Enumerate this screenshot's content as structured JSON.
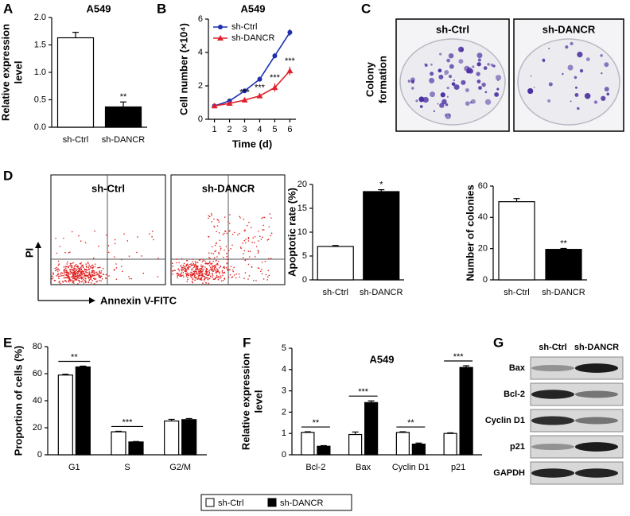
{
  "panel_labels": [
    "A",
    "B",
    "C",
    "D",
    "E",
    "F",
    "G"
  ],
  "chart_data": [
    {
      "type": "bar",
      "title": "A549",
      "y_label": [
        "Relative expression",
        "level"
      ],
      "categories": [
        "sh-Ctrl",
        "sh-DANCR"
      ],
      "values": [
        1.63,
        0.37
      ],
      "errors": [
        0.1,
        0.09
      ],
      "colors": [
        "#ffffff",
        "#000000"
      ],
      "annotations": [
        null,
        "**"
      ],
      "ylim": [
        0,
        2
      ],
      "yticks": [
        {
          "value": 0,
          "label": "0.0"
        },
        0.5,
        {
          "value": 1,
          "label": "1.0"
        },
        1.5,
        {
          "value": 2,
          "label": "2.0"
        }
      ]
    },
    {
      "type": "line",
      "title": "A549",
      "y_label": "Cell number (×10⁴)",
      "x_label": "Time (d)",
      "x": [
        1,
        2,
        3,
        4,
        5,
        6
      ],
      "series": [
        {
          "name": "sh-Ctrl",
          "color": "#1f2fb0",
          "marker": "circle",
          "values": [
            0.8,
            1.1,
            1.7,
            2.4,
            3.8,
            5.2
          ],
          "errors": [
            0.05,
            0.1,
            0.1,
            0.15,
            0.15,
            0.2
          ]
        },
        {
          "name": "sh-DANCR",
          "color": "#e0202a",
          "marker": "triangle",
          "values": [
            0.8,
            0.95,
            1.15,
            1.4,
            1.9,
            2.9
          ],
          "errors": [
            0.05,
            0.08,
            0.1,
            0.15,
            0.25,
            0.25
          ]
        }
      ],
      "annotations": [
        null,
        null,
        "***",
        "***",
        "***",
        "***"
      ],
      "xlim": [
        0.6,
        6.4
      ],
      "xticks": [
        1,
        2,
        3,
        4,
        5,
        6
      ],
      "ylim": [
        0,
        6
      ],
      "yticks": [
        0,
        2,
        4,
        6
      ],
      "legend": "upper left"
    },
    {
      "type": "bar",
      "y_label": "Apoptotic rate (%)",
      "categories": [
        "sh-Ctrl",
        "sh-DANCR"
      ],
      "values": [
        7,
        18.5
      ],
      "errors": [
        0.2,
        0.4
      ],
      "colors": [
        "#ffffff",
        "#000000"
      ],
      "annotations": [
        null,
        "*"
      ],
      "ylim": [
        0,
        20
      ],
      "yticks": [
        0,
        5,
        10,
        15,
        20
      ]
    },
    {
      "type": "bar",
      "y_label": "Number of colonies",
      "categories": [
        "sh-Ctrl",
        "sh-DANCR"
      ],
      "values": [
        50,
        19.5
      ],
      "errors": [
        2,
        0.6
      ],
      "colors": [
        "#ffffff",
        "#000000"
      ],
      "annotations": [
        null,
        "**"
      ],
      "ylim": [
        0,
        60
      ],
      "yticks": [
        0,
        20,
        40,
        60
      ]
    },
    {
      "type": "grouped_bar",
      "y_label": "Proportion of cells (%)",
      "categories": [
        "G1",
        "S",
        "G2/M"
      ],
      "series": [
        {
          "name": "sh-Ctrl",
          "color": "#ffffff",
          "values": [
            59,
            17,
            25
          ],
          "errors": [
            0.6,
            0.4,
            1.2
          ]
        },
        {
          "name": "sh-DANCR",
          "color": "#000000",
          "values": [
            65,
            9.5,
            26
          ],
          "errors": [
            0.6,
            0.3,
            0.8
          ]
        }
      ],
      "annotations": [
        "**",
        "***",
        null
      ],
      "ylim": [
        0,
        80
      ],
      "yticks": [
        0,
        20,
        40,
        60,
        80
      ]
    },
    {
      "type": "grouped_bar",
      "title": "A549",
      "y_label": [
        "Relative expression",
        "level"
      ],
      "categories": [
        "Bcl-2",
        "Bax",
        "Cyclin D1",
        "p21"
      ],
      "series": [
        {
          "color": "#ffffff",
          "values": [
            1.05,
            0.95,
            1.05,
            1.0
          ],
          "errors": [
            0.03,
            0.12,
            0.03,
            0.03
          ]
        },
        {
          "color": "#000000",
          "values": [
            0.4,
            2.45,
            0.5,
            4.1
          ],
          "errors": [
            0.03,
            0.08,
            0.05,
            0.08
          ]
        }
      ],
      "annotations": [
        "**",
        "***",
        "**",
        "***"
      ],
      "ylim": [
        0,
        5
      ],
      "yticks": [
        0,
        1,
        2,
        3,
        4,
        5
      ]
    }
  ],
  "colony_formation": {
    "columns": [
      "sh-Ctrl",
      "sh-DANCR"
    ],
    "side_label": [
      "Colony",
      "formation"
    ]
  },
  "flow_cytometry": {
    "columns": [
      "sh-Ctrl",
      "sh-DANCR"
    ],
    "y_axis": "PI",
    "x_axis": "Annexin V-FITC"
  },
  "western_blot": {
    "columns": [
      "sh-Ctrl",
      "sh-DANCR"
    ],
    "rows": [
      "Bax",
      "Bcl-2",
      "Cyclin D1",
      "p21",
      "GAPDH"
    ]
  }
}
